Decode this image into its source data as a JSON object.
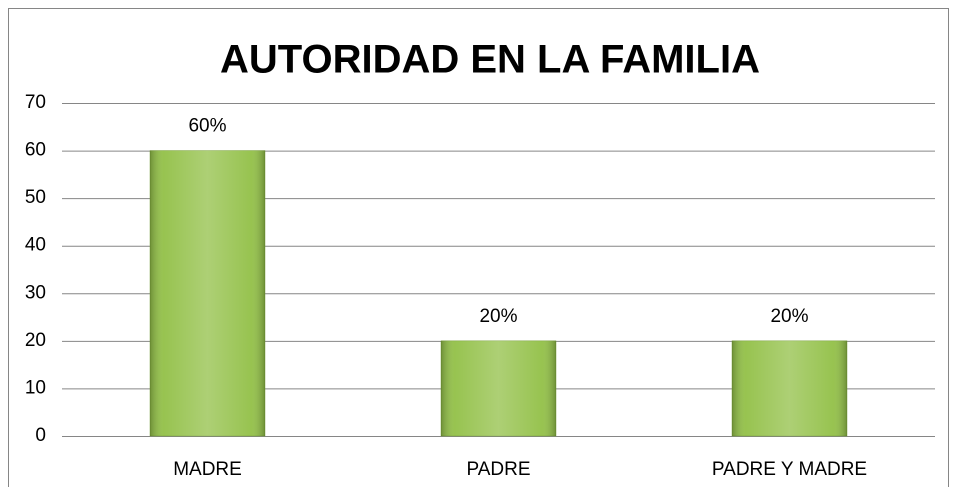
{
  "chart_data": {
    "type": "bar",
    "title": "AUTORIDAD EN LA FAMILIA",
    "categories": [
      "MADRE",
      "PADRE",
      "PADRE Y MADRE"
    ],
    "values": [
      60,
      20,
      20
    ],
    "value_labels": [
      "60%",
      "20%",
      "20%"
    ],
    "color": "#92c047",
    "ylim": [
      0,
      70
    ],
    "yticks": [
      0,
      10,
      20,
      30,
      40,
      50,
      60,
      70
    ],
    "grid": true
  }
}
